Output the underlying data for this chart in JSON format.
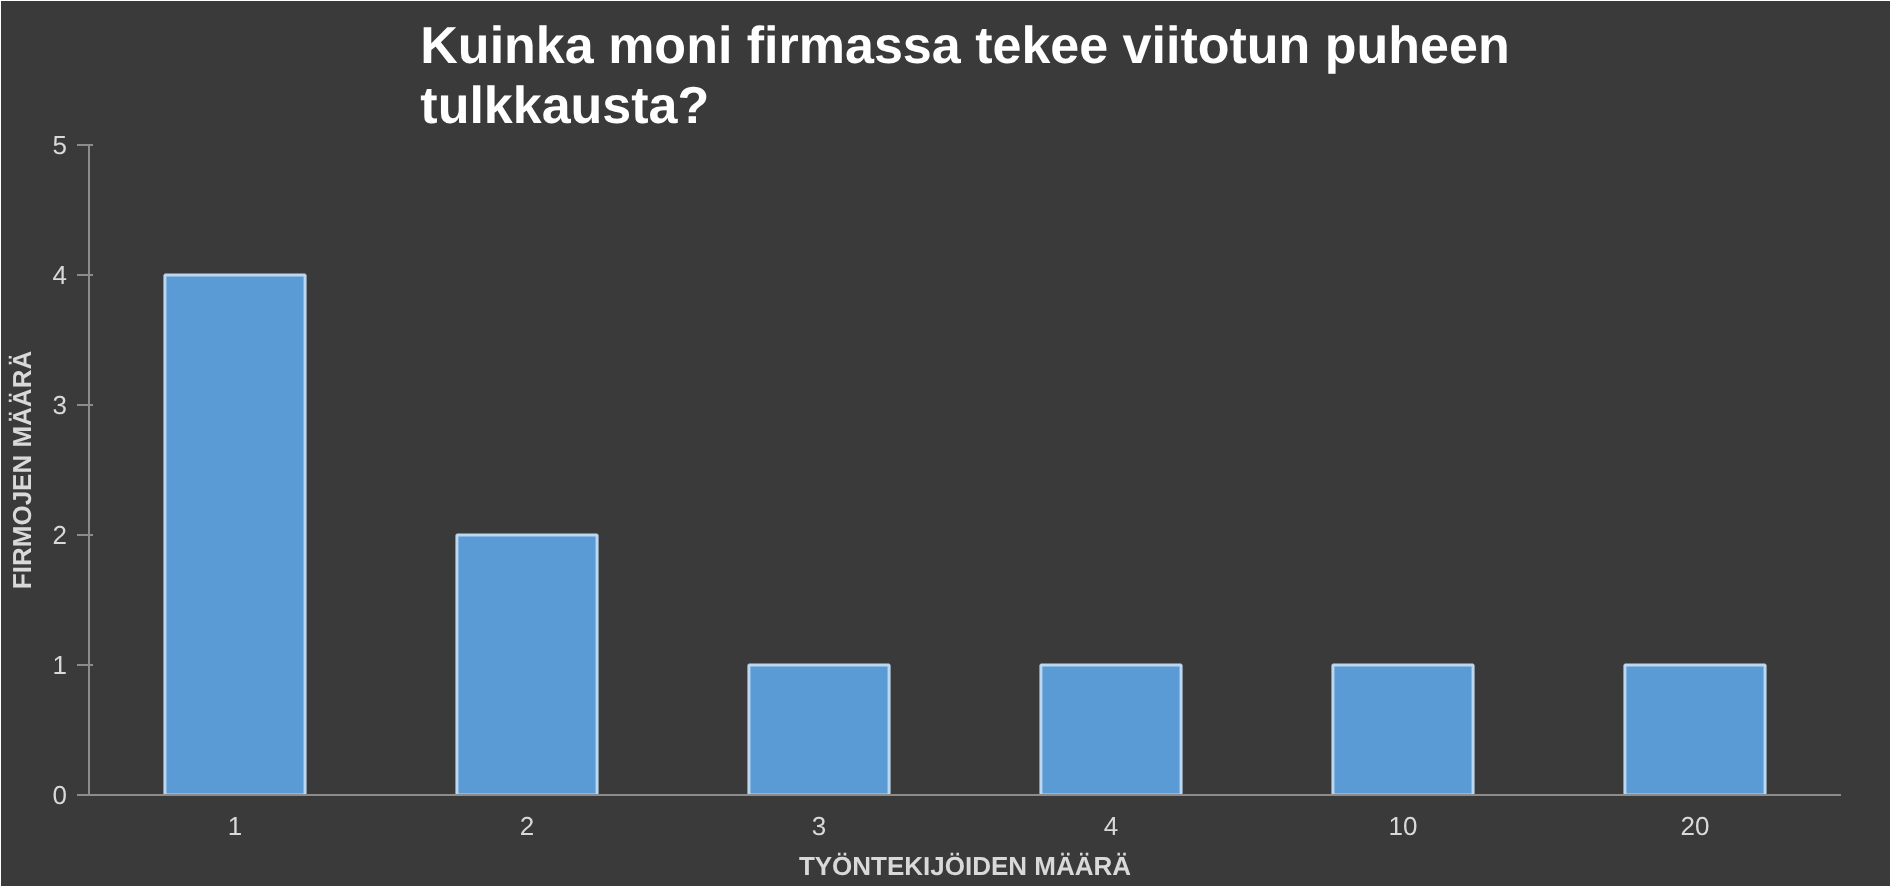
{
  "chart_data": {
    "type": "bar",
    "title": "Kuinka moni firmassa tekee viitotun puheen tulkkausta?",
    "xlabel": "TYÖNTEKIJÖIDEN MÄÄRÄ",
    "ylabel": "FIRMOJEN MÄÄRÄ",
    "categories": [
      "1",
      "2",
      "3",
      "4",
      "10",
      "20"
    ],
    "values": [
      4,
      2,
      1,
      1,
      1,
      1
    ],
    "color": "#5b9bd5",
    "ylim": [
      0,
      5
    ],
    "yticks": [
      0,
      1,
      2,
      3,
      4,
      5
    ],
    "grid": false
  }
}
